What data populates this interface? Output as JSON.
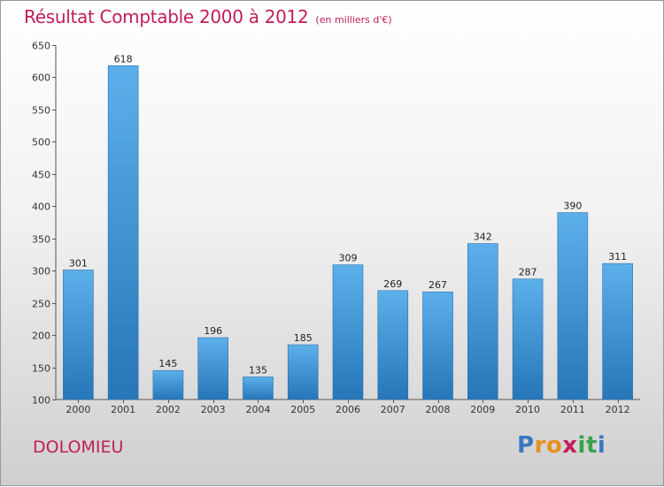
{
  "title": "Résultat Comptable 2000 à 2012",
  "subtitle": "(en milliers d'€)",
  "place": "DOLOMIEU",
  "logo": {
    "letters": [
      "P",
      "r",
      "o",
      "x",
      "i",
      "t",
      "i"
    ],
    "colors": [
      "#3a78c2",
      "#e8901e",
      "#e8901e",
      "#c21d5b",
      "#3aa24a",
      "#3aa24a",
      "#3a78c2"
    ]
  },
  "colors": {
    "title": "#c21d5b",
    "bar_top": "#5cb0ea",
    "bar_bottom": "#2676b8"
  },
  "chart_data": {
    "type": "bar",
    "title": "Résultat Comptable 2000 à 2012",
    "subtitle": "(en milliers d'€)",
    "categories": [
      "2000",
      "2001",
      "2002",
      "2003",
      "2004",
      "2005",
      "2006",
      "2007",
      "2008",
      "2009",
      "2010",
      "2011",
      "2012"
    ],
    "values": [
      301,
      618,
      145,
      196,
      135,
      185,
      309,
      269,
      267,
      342,
      287,
      390,
      311
    ],
    "ylim": [
      100,
      650
    ],
    "yticks": [
      100,
      150,
      200,
      250,
      300,
      350,
      400,
      450,
      500,
      550,
      600,
      650
    ],
    "grid": false,
    "legend": "none"
  }
}
